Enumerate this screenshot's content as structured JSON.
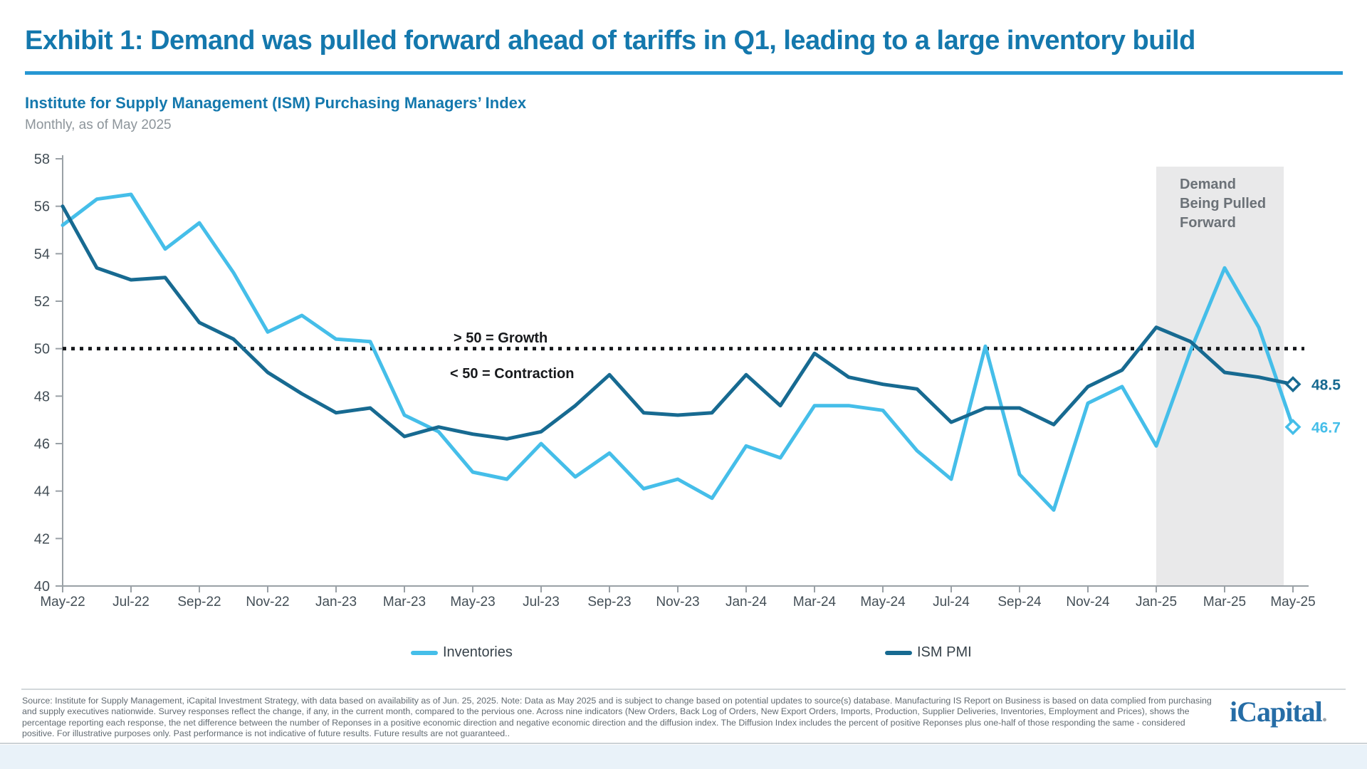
{
  "header": {
    "exhibit_title": "Exhibit 1: Demand was pulled forward ahead of tariffs in Q1, leading to a large inventory build"
  },
  "chart_data": {
    "type": "line",
    "title": "Institute for Supply Management (ISM) Purchasing Managers’ Index",
    "subtitle": "Monthly, as of May 2025",
    "months": [
      "May-22",
      "Jun-22",
      "Jul-22",
      "Aug-22",
      "Sep-22",
      "Oct-22",
      "Nov-22",
      "Dec-22",
      "Jan-23",
      "Feb-23",
      "Mar-23",
      "Apr-23",
      "May-23",
      "Jun-23",
      "Jul-23",
      "Aug-23",
      "Sep-23",
      "Oct-23",
      "Nov-23",
      "Dec-23",
      "Jan-24",
      "Feb-24",
      "Mar-24",
      "Apr-24",
      "May-24",
      "Jun-24",
      "Jul-24",
      "Aug-24",
      "Sep-24",
      "Oct-24",
      "Nov-24",
      "Dec-24",
      "Jan-25",
      "Feb-25",
      "Mar-25",
      "Apr-25",
      "May-25"
    ],
    "x_tick_every": 2,
    "ylim": [
      40,
      58
    ],
    "ytick_step": 2,
    "grid": false,
    "legend_position": "bottom",
    "series": [
      {
        "name": "Inventories",
        "color": "#45bee9",
        "values": [
          55.2,
          56.3,
          56.5,
          54.2,
          55.3,
          53.2,
          50.7,
          51.4,
          50.4,
          50.3,
          47.2,
          46.5,
          44.8,
          44.5,
          46.0,
          44.6,
          45.6,
          44.1,
          44.5,
          43.7,
          45.9,
          45.4,
          47.6,
          47.6,
          47.4,
          45.7,
          44.5,
          50.1,
          44.7,
          43.2,
          47.7,
          48.4,
          45.9,
          49.9,
          53.4,
          50.9,
          46.7
        ]
      },
      {
        "name": "ISM PMI",
        "color": "#176a91",
        "values": [
          56.0,
          53.4,
          52.9,
          53.0,
          51.1,
          50.4,
          49.0,
          48.1,
          47.3,
          47.5,
          46.3,
          46.7,
          46.4,
          46.2,
          46.5,
          47.6,
          48.9,
          47.3,
          47.2,
          47.3,
          48.9,
          47.6,
          49.8,
          48.8,
          48.5,
          48.3,
          46.9,
          47.5,
          47.5,
          46.8,
          48.4,
          49.1,
          50.9,
          50.3,
          49.0,
          48.8,
          48.5
        ]
      }
    ],
    "reference_line": {
      "value": 50,
      "above_label": "> 50 = Growth",
      "below_label": "< 50 = Contraction",
      "color": "#17191c"
    },
    "shaded_region": {
      "label": "Demand Being Pulled Forward",
      "from_index": 32,
      "to_index": 35.73,
      "fill": "#e9e9ea"
    },
    "annotation_lines": [
      "Demand",
      "Being Pulled",
      "Forward"
    ],
    "end_labels": [
      {
        "series": "ISM PMI",
        "value": "48.5"
      },
      {
        "series": "Inventories",
        "value": "46.7"
      }
    ]
  },
  "legend": {
    "items": [
      {
        "label": "Inventories",
        "color": "#45bee9"
      },
      {
        "label": "ISM PMI",
        "color": "#176a91"
      }
    ]
  },
  "footer": {
    "lines": [
      "Source: Institute for Supply Management, iCapital Investment Strategy, with data based on availability as of Jun. 25, 2025. Note: Data as May 2025 and is subject to change based on potential updates to source(s) database. Manufacturing IS Report on Business is based on data complied from purchasing",
      "and supply executives nationwide. Survey responses reflect the change, if any, in the current month, compared to the pervious one. Across nine indicators (New Orders, Back Log of Orders, New Export Orders, Imports, Production, Supplier Deliveries, Inventories, Employment and Prices), shows the",
      "percentage reporting each response, the net difference between the number of Reponses in a positive economic direction and negative economic direction and the diffusion index. The Diffusion Index includes the percent of positive Reponses plus one-half of those responding the same - considered",
      "positive. For illustrative purposes only. Past performance is not indicative of future results. Future results are not guaranteed.."
    ],
    "logo_text": "iCapital",
    "logo_dot": "."
  }
}
